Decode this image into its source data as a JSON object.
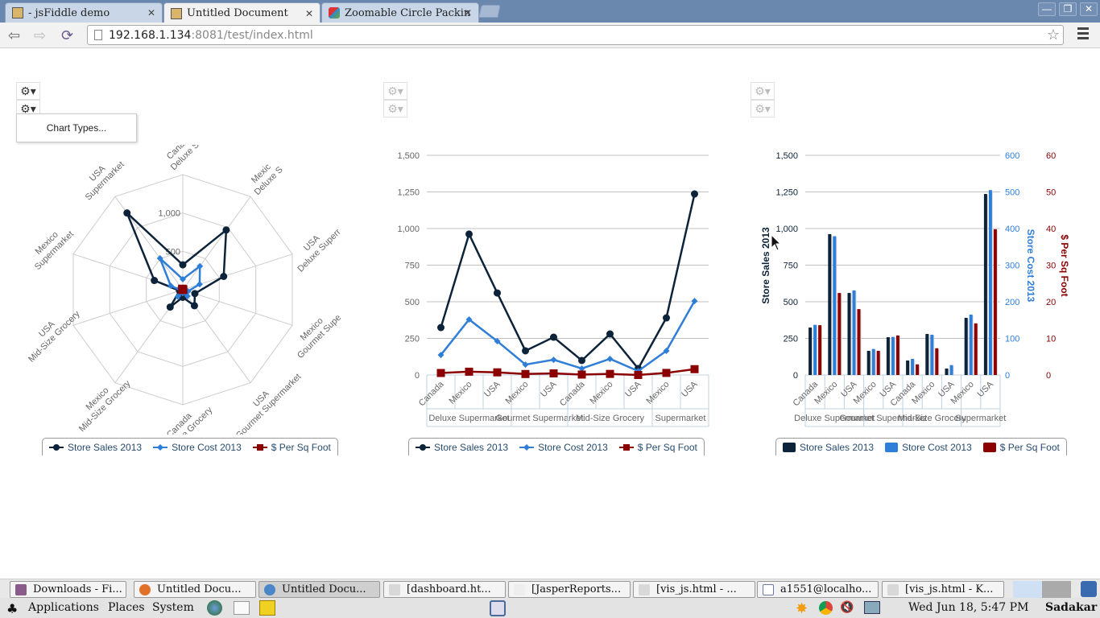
{
  "browser": {
    "tabs": [
      {
        "label": "- jsFiddle demo",
        "active": false
      },
      {
        "label": "Untitled Document",
        "active": true
      },
      {
        "label": "Zoomable Circle Packin",
        "active": false
      }
    ],
    "window_controls": {
      "minimize": "—",
      "restore": "❐",
      "close": "✕"
    },
    "url": {
      "host": "192.168.1.134",
      "rest": ":8081/test/index.html"
    },
    "nav": {
      "back": "⇦",
      "forward": "⇨",
      "reload": "⟳"
    },
    "bookmark_icon": "☆"
  },
  "page": {
    "gear_icon": "⚙▾",
    "popup_menu": {
      "item": "Chart Types..."
    },
    "legend": {
      "series": [
        {
          "name": "Store Sales 2013",
          "color": "#0d233a"
        },
        {
          "name": "Store Cost 2013",
          "color": "#2f7ed8"
        },
        {
          "name": "$ Per Sq Foot",
          "color": "#8b0000"
        }
      ]
    }
  },
  "chart_data": [
    {
      "type": "radar",
      "title": "",
      "categories": [
        "Canada Deluxe Supermarket",
        "Mexico Deluxe Supermarket",
        "USA Deluxe Supermarket",
        "Mexico Gourmet Supermarket",
        "USA Gourmet Supermarket",
        "Canada Mid-Size Grocery",
        "Mexico Mid-Size Grocery",
        "USA Mid-Size Grocery",
        "Mexico Supermarket",
        "USA Supermarket"
      ],
      "category_labels": [
        [
          "Canada",
          "Deluxe Su"
        ],
        [
          "Mexic",
          "Deluxe S"
        ],
        [
          "USA",
          "Deluxe Superr"
        ],
        [
          "Mexico",
          "Gourmet Supe"
        ],
        [
          "USA",
          "Gourmet Supermarket"
        ],
        [
          "Canada",
          "Mid-Size Grocery"
        ],
        [
          "Mexico",
          "Mid-Size Grocery"
        ],
        [
          "USA",
          "Mid-Size Grocery"
        ],
        [
          "Mexico",
          "Supermarket"
        ],
        [
          "USA",
          "Supermarket"
        ]
      ],
      "radial_ticks": [
        "0",
        "500",
        "1,000"
      ],
      "rmax": 1500,
      "series": [
        {
          "name": "Store Sales 2013",
          "values": [
            324,
            962,
            560,
            165,
            258,
            99,
            280,
            44,
            390,
            1236
          ]
        },
        {
          "name": "Store Cost 2013",
          "values": [
            137,
            379,
            231,
            71,
            104,
            44,
            110,
            27,
            165,
            505
          ]
        },
        {
          "name": "$ Per Sq Foot",
          "values": [
            13.6,
            22.4,
            18.0,
            6.6,
            10.8,
            2.9,
            7.3,
            0,
            14.1,
            39.8
          ]
        }
      ]
    },
    {
      "type": "line",
      "title": "",
      "categories": [
        "Canada",
        "Mexico",
        "USA",
        "Mexico",
        "USA",
        "Canada",
        "Mexico",
        "USA",
        "Mexico",
        "USA"
      ],
      "groups": [
        {
          "label": "Deluxe Supermarket",
          "span": 3
        },
        {
          "label": "Gourmet Supermarket",
          "span": 2
        },
        {
          "label": "Mid-Size Grocery",
          "span": 3
        },
        {
          "label": "Supermarket",
          "span": 2
        }
      ],
      "yticks": [
        "0",
        "250",
        "500",
        "750",
        "1,000",
        "1,250",
        "1,500"
      ],
      "ylim": [
        0,
        1500
      ],
      "series": [
        {
          "name": "Store Sales 2013",
          "values": [
            324,
            962,
            560,
            165,
            258,
            99,
            280,
            44,
            390,
            1236
          ]
        },
        {
          "name": "Store Cost 2013",
          "values": [
            137,
            379,
            231,
            71,
            104,
            44,
            110,
            27,
            165,
            505
          ]
        },
        {
          "name": "$ Per Sq Foot",
          "values": [
            13.6,
            22.4,
            18.0,
            6.6,
            10.8,
            2.9,
            7.3,
            0,
            14.1,
            39.8
          ]
        }
      ]
    },
    {
      "type": "bar",
      "title": "",
      "categories": [
        "Canada",
        "Mexico",
        "USA",
        "Mexico",
        "USA",
        "Canada",
        "Mexico",
        "USA",
        "Mexico",
        "USA"
      ],
      "groups": [
        {
          "label": "Deluxe Supermarket",
          "span": 3
        },
        {
          "label": "Gourmet Supermarket",
          "span": 2
        },
        {
          "label": "Mid-Size Grocery",
          "span": 3
        },
        {
          "label": "Supermarket",
          "span": 2
        }
      ],
      "axes": [
        {
          "title": "Store Sales 2013",
          "ticks": [
            "0",
            "250",
            "500",
            "750",
            "1,000",
            "1,250",
            "1,500"
          ],
          "ylim": [
            0,
            1500
          ],
          "color": "#0d233a"
        },
        {
          "title": "Store Cost 2013",
          "ticks": [
            "0",
            "100",
            "200",
            "300",
            "400",
            "500",
            "600"
          ],
          "ylim": [
            0,
            600
          ],
          "color": "#2f7ed8"
        },
        {
          "title": "$ Per Sq Foot",
          "ticks": [
            "0",
            "10",
            "20",
            "30",
            "40",
            "50",
            "60"
          ],
          "ylim": [
            0,
            60
          ],
          "color": "#8b0000"
        }
      ],
      "series": [
        {
          "name": "Store Sales 2013",
          "values": [
            324,
            962,
            560,
            165,
            258,
            99,
            280,
            44,
            390,
            1236
          ]
        },
        {
          "name": "Store Cost 2013",
          "values": [
            137,
            379,
            231,
            71,
            104,
            44,
            110,
            27,
            165,
            505
          ]
        },
        {
          "name": "$ Per Sq Foot",
          "values": [
            13.6,
            22.4,
            18.0,
            6.6,
            10.8,
            2.9,
            7.3,
            0,
            14.1,
            39.8
          ]
        }
      ]
    }
  ],
  "taskbar": {
    "tasks": [
      {
        "label": "Downloads - Fi...",
        "color": "#8a5a8a"
      },
      {
        "label": "Untitled Docu...",
        "color": "#e0702a"
      },
      {
        "label": "Untitled Docu...",
        "color": "#4a86c8",
        "active": true
      },
      {
        "label": "[dashboard.ht...",
        "color": "#d8d8d8"
      },
      {
        "label": "[JasperReports...",
        "color": "#eeeeee"
      },
      {
        "label": "[vis_js.html - ...",
        "color": "#d8d8d8"
      },
      {
        "label": "a1551@localho...",
        "color": "#6a7aa8"
      },
      {
        "label": "[vis_js.html - K...",
        "color": "#d8d8d8"
      }
    ]
  },
  "panel": {
    "menus": [
      "Applications",
      "Places",
      "System"
    ],
    "clock": "Wed Jun 18,  5:47 PM",
    "user": "Sadakar"
  }
}
